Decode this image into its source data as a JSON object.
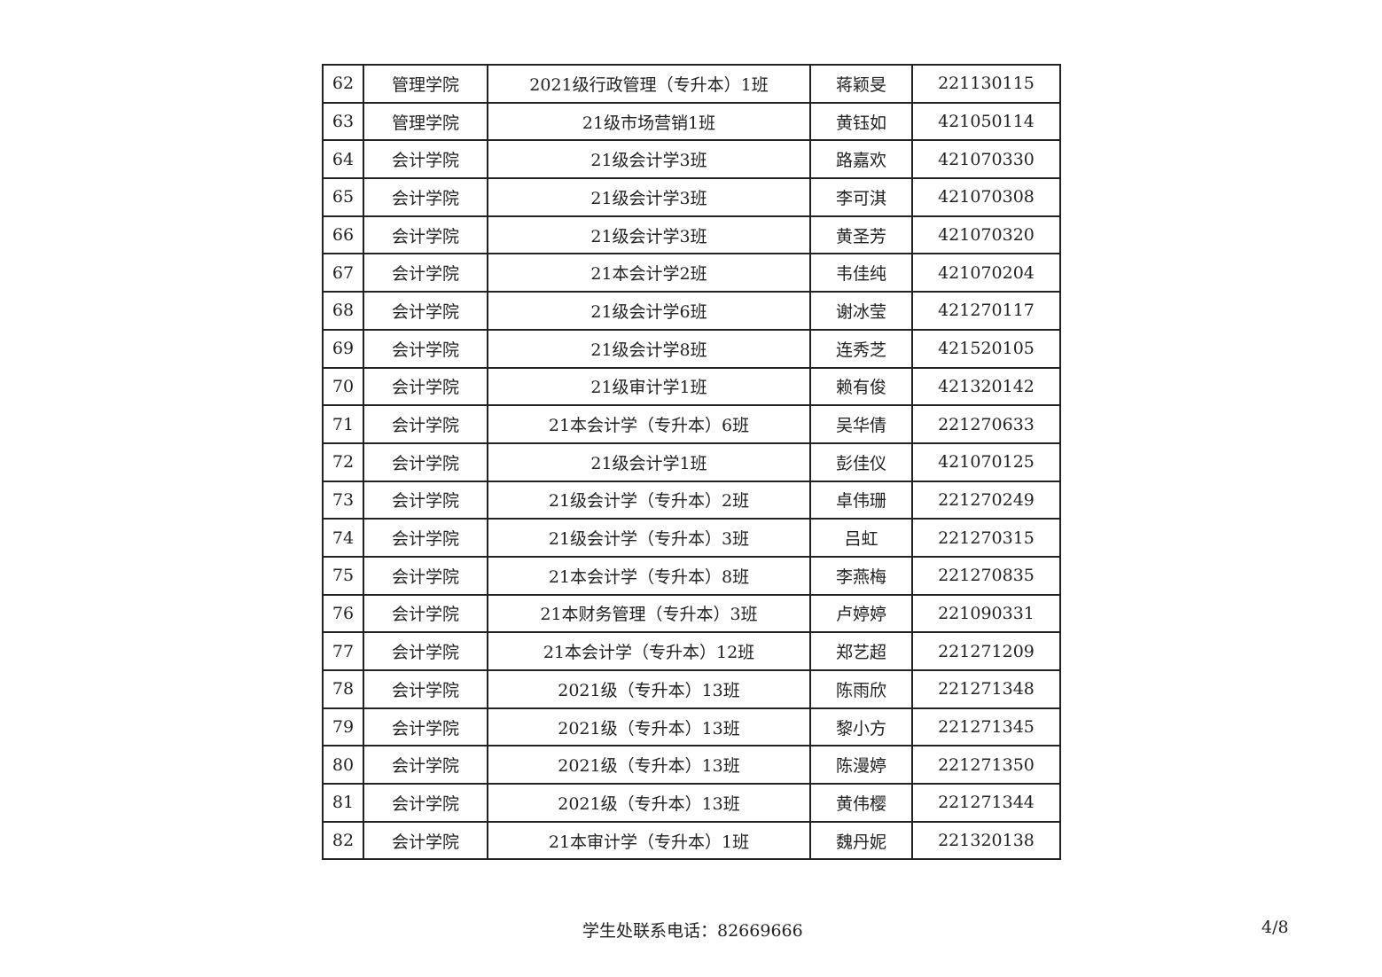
{
  "table": {
    "rows": [
      [
        "62",
        "管理学院",
        "2021级行政管理（专升本）1班",
        "蒋颖旻",
        "221130115"
      ],
      [
        "63",
        "管理学院",
        "21级市场营销1班",
        "黄钰如",
        "421050114"
      ],
      [
        "64",
        "会计学院",
        "21级会计学3班",
        "路嘉欢",
        "421070330"
      ],
      [
        "65",
        "会计学院",
        "21级会计学3班",
        "李可淇",
        "421070308"
      ],
      [
        "66",
        "会计学院",
        "21级会计学3班",
        "黄圣芳",
        "421070320"
      ],
      [
        "67",
        "会计学院",
        "21本会计学2班",
        "韦佳纯",
        "421070204"
      ],
      [
        "68",
        "会计学院",
        "21级会计学6班",
        "谢冰莹",
        "421270117"
      ],
      [
        "69",
        "会计学院",
        "21级会计学8班",
        "连秀芝",
        "421520105"
      ],
      [
        "70",
        "会计学院",
        "21级审计学1班",
        "赖有俊",
        "421320142"
      ],
      [
        "71",
        "会计学院",
        "21本会计学（专升本）6班",
        "吴华倩",
        "221270633"
      ],
      [
        "72",
        "会计学院",
        "21级会计学1班",
        "彭佳仪",
        "421070125"
      ],
      [
        "73",
        "会计学院",
        "21级会计学（专升本）2班",
        "卓伟珊",
        "221270249"
      ],
      [
        "74",
        "会计学院",
        "21级会计学（专升本）3班",
        "吕虹",
        "221270315"
      ],
      [
        "75",
        "会计学院",
        "21本会计学（专升本）8班",
        "李燕梅",
        "221270835"
      ],
      [
        "76",
        "会计学院",
        "21本财务管理（专升本）3班",
        "卢婷婷",
        "221090331"
      ],
      [
        "77",
        "会计学院",
        "21本会计学（专升本）12班",
        "郑艺超",
        "221271209"
      ],
      [
        "78",
        "会计学院",
        "2021级（专升本）13班",
        "陈雨欣",
        "221271348"
      ],
      [
        "79",
        "会计学院",
        "2021级（专升本）13班",
        "黎小方",
        "221271345"
      ],
      [
        "80",
        "会计学院",
        "2021级（专升本）13班",
        "陈漫婷",
        "221271350"
      ],
      [
        "81",
        "会计学院",
        "2021级（专升本）13班",
        "黄伟樱",
        "221271344"
      ],
      [
        "82",
        "会计学院",
        "21本审计学（专升本）1班",
        "魏丹妮",
        "221320138"
      ]
    ]
  },
  "footer": {
    "contact": "学生处联系电话：82669666",
    "page": "4/8"
  }
}
